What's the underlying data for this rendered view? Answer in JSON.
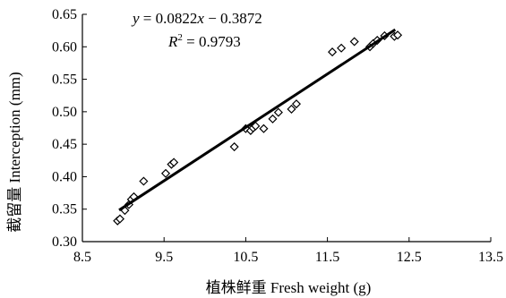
{
  "chart_data": {
    "type": "scatter",
    "xlabel": "植株鲜重 Fresh weight (g)",
    "ylabel": "截留量 Interception (mm)",
    "xlim": [
      8.5,
      13.5
    ],
    "ylim": [
      0.3,
      0.65
    ],
    "x_ticks": [
      "8.5",
      "9.5",
      "10.5",
      "11.5",
      "12.5",
      "13.5"
    ],
    "y_ticks": [
      "0.30",
      "0.35",
      "0.40",
      "0.45",
      "0.50",
      "0.55",
      "0.60",
      "0.65"
    ],
    "grid": false,
    "marker": "open-diamond",
    "points": [
      {
        "x": 8.93,
        "y": 0.332
      },
      {
        "x": 8.96,
        "y": 0.335
      },
      {
        "x": 9.02,
        "y": 0.348
      },
      {
        "x": 9.07,
        "y": 0.357
      },
      {
        "x": 9.1,
        "y": 0.365
      },
      {
        "x": 9.13,
        "y": 0.369
      },
      {
        "x": 9.25,
        "y": 0.393
      },
      {
        "x": 9.52,
        "y": 0.405
      },
      {
        "x": 9.59,
        "y": 0.419
      },
      {
        "x": 9.62,
        "y": 0.422
      },
      {
        "x": 10.36,
        "y": 0.446
      },
      {
        "x": 10.5,
        "y": 0.474
      },
      {
        "x": 10.56,
        "y": 0.471
      },
      {
        "x": 10.59,
        "y": 0.475
      },
      {
        "x": 10.62,
        "y": 0.478
      },
      {
        "x": 10.72,
        "y": 0.474
      },
      {
        "x": 10.83,
        "y": 0.489
      },
      {
        "x": 10.9,
        "y": 0.499
      },
      {
        "x": 11.06,
        "y": 0.504
      },
      {
        "x": 11.12,
        "y": 0.512
      },
      {
        "x": 11.56,
        "y": 0.592
      },
      {
        "x": 11.67,
        "y": 0.598
      },
      {
        "x": 11.83,
        "y": 0.608
      },
      {
        "x": 12.02,
        "y": 0.6
      },
      {
        "x": 12.06,
        "y": 0.605
      },
      {
        "x": 12.11,
        "y": 0.61
      },
      {
        "x": 12.2,
        "y": 0.617
      },
      {
        "x": 12.32,
        "y": 0.616
      },
      {
        "x": 12.36,
        "y": 0.618
      }
    ],
    "trendline": {
      "slope": 0.0822,
      "intercept": -0.3872,
      "x_range": [
        8.95,
        12.33
      ]
    },
    "annotations": {
      "equation": {
        "italic_var": "y",
        "eq_text": " = 0.0822",
        "x_var": "x",
        "rest": " − 0.3872"
      },
      "r2": {
        "var": "R",
        "sup": "2",
        "value": " = 0.9793"
      }
    }
  }
}
